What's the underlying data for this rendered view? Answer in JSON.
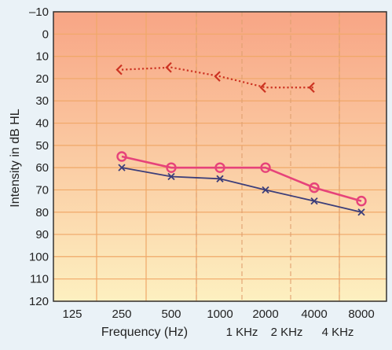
{
  "chart_data": {
    "type": "line",
    "ylabel": "Intensity in dB HL",
    "xlabel": "Frequency (Hz)",
    "x_ticks": [
      "125",
      "250",
      "500",
      "1000",
      "2000",
      "4000",
      "8000"
    ],
    "x_ticks_extra": [
      "1 KHz",
      "2 KHz",
      "4 KHz"
    ],
    "y_ticks": [
      "–10",
      "0",
      "10",
      "20",
      "30",
      "40",
      "50",
      "60",
      "70",
      "80",
      "90",
      "100",
      "110",
      "120"
    ],
    "ylim": [
      -10,
      120
    ],
    "y_inverted": true,
    "grid": true,
    "colors": {
      "background_top": "#f8a585",
      "background_bottom": "#fdf0c0",
      "grid_solid": "#f0a868",
      "grid_dashed": "#e0a070",
      "series_circle": "#e6437a",
      "series_cross": "#3c3e7a",
      "series_bone": "#cc3322",
      "axis": "#333333"
    },
    "series": [
      {
        "marker": "circle",
        "line_style": "solid",
        "x": [
          "250",
          "500",
          "1000",
          "2000",
          "4000",
          "8000"
        ],
        "values": [
          55,
          60,
          60,
          60,
          69,
          75
        ]
      },
      {
        "marker": "cross",
        "line_style": "solid",
        "x": [
          "250",
          "500",
          "1000",
          "2000",
          "4000",
          "8000"
        ],
        "values": [
          60,
          64,
          65,
          70,
          75,
          80
        ]
      },
      {
        "marker": "bone-conduction-bracket",
        "line_style": "dotted",
        "x": [
          "250",
          "500",
          "1000",
          "2000",
          "4000"
        ],
        "values": [
          16,
          15,
          19,
          24,
          24
        ]
      }
    ]
  }
}
